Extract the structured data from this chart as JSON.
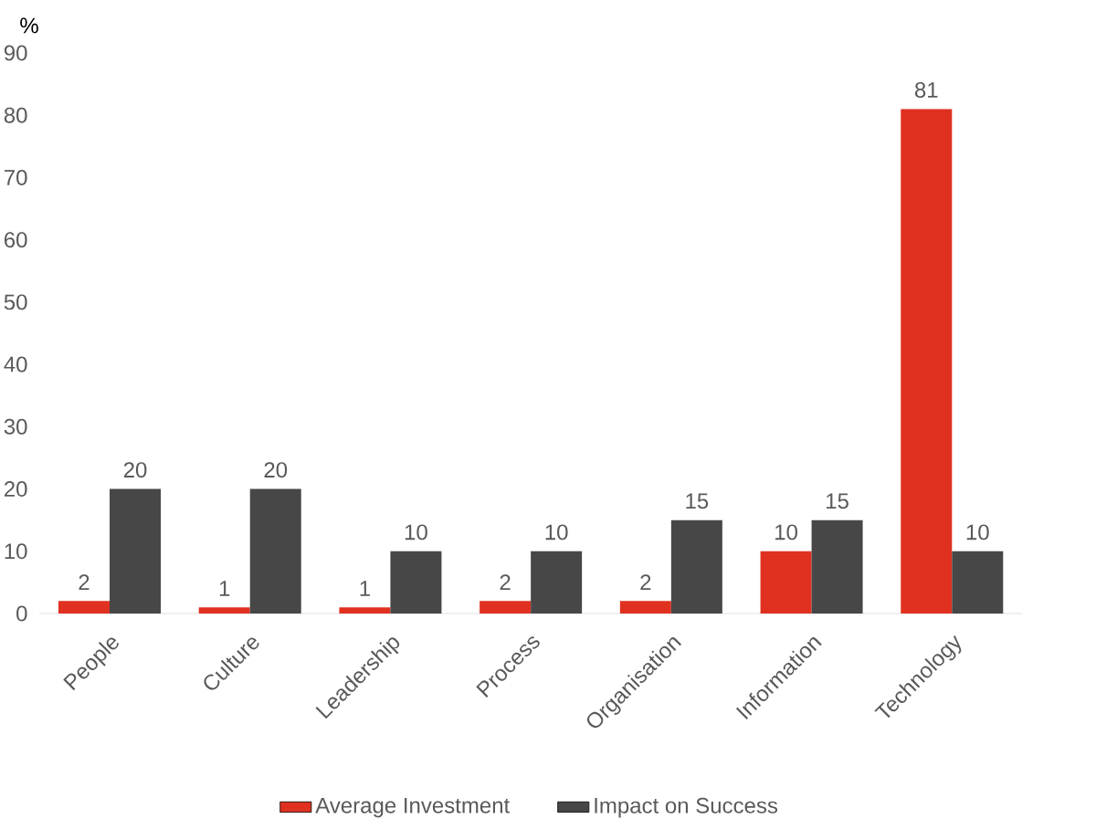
{
  "chart_data": {
    "type": "bar",
    "ylabel": "%",
    "categories": [
      "People",
      "Culture",
      "Leadership",
      "Process",
      "Organisation",
      "Information",
      "Technology"
    ],
    "series": [
      {
        "name": "Average Investment",
        "color": "#e03120",
        "values": [
          2,
          1,
          1,
          2,
          2,
          10,
          81
        ]
      },
      {
        "name": "Impact on Success",
        "color": "#474747",
        "values": [
          20,
          20,
          10,
          10,
          15,
          15,
          10
        ]
      }
    ],
    "ylim": [
      0,
      90
    ],
    "yticks": [
      0,
      10,
      20,
      30,
      40,
      50,
      60,
      70,
      80,
      90
    ],
    "data_labels": true,
    "legend": "bottom"
  }
}
